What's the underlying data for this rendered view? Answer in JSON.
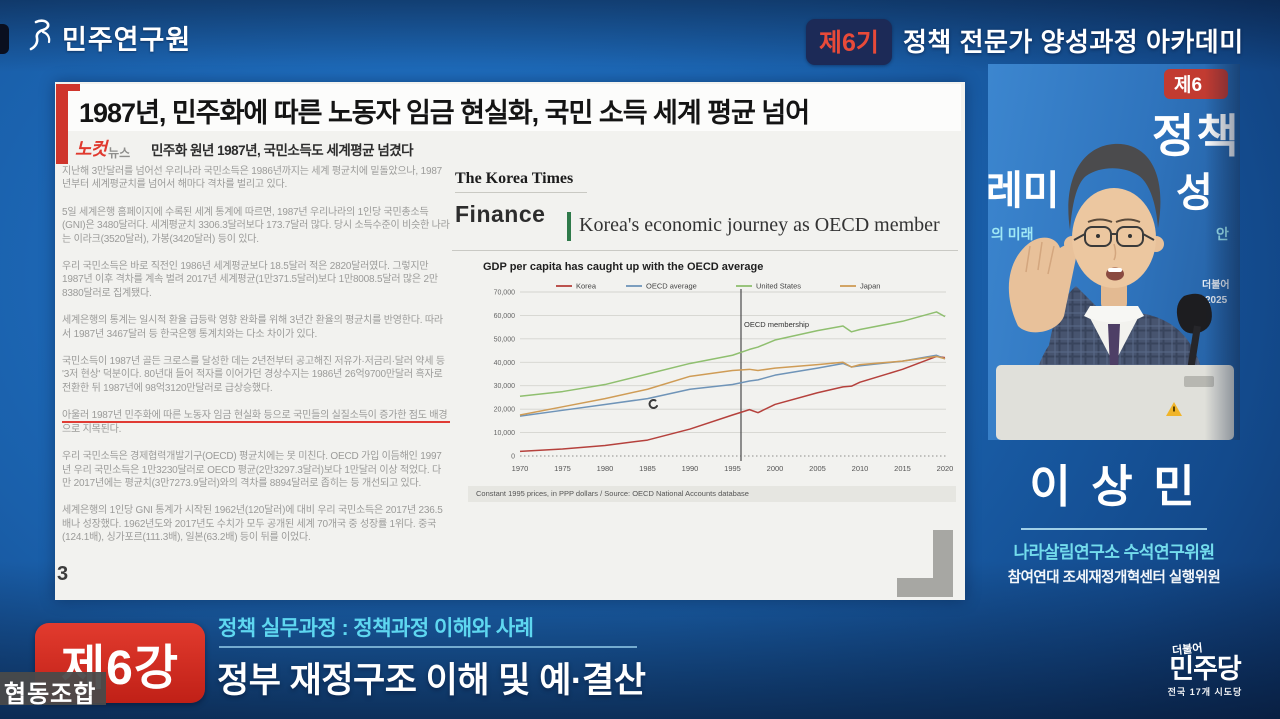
{
  "header": {
    "logo_text": "민주연구원",
    "badge": "제6기",
    "title": "정책 전문가 양성과정 아카데미"
  },
  "slide": {
    "headline": "1987년, 민주화에 따른 노동자 임금 현실화, 국민 소득 세계 평균 넘어",
    "news_logo_primary": "노컷",
    "news_logo_secondary": "뉴스",
    "subhead": "민주화 원년 1987년, 국민소득도 세계평균 넘겼다",
    "page_number": "3",
    "paragraphs": [
      "지난해 3만달러를 넘어선 우리나라 국민소득은 1986년까지는 세계 평균치에 밑돌았으나, 1987년부터 세계평균치를 넘어서 해마다 격차를 벌리고 있다.",
      "5일 세계은행 홈페이지에 수록된 세계 통계에 따르면, 1987년 우리나라의 1인당 국민총소득(GNI)은 3480달러다. 세계평균치 3306.3달러보다 173.7달러 많다. 당시 소득수준이 비슷한 나라는 이라크(3520달러), 가봉(3420달러) 등이 있다.",
      "우리 국민소득은 바로 직전인 1986년 세계평균보다 18.5달러 적은 2820달러였다. 그렇지만 1987년 이후 격차를 계속 벌려 2017년 세계평균(1만371.5달러)보다 1만8008.5달러 많은 2만8380달러로 집계됐다.",
      "세계은행의 통계는 일시적 환율 급등락 영향 완화를 위해 3년간 환율의 평균치를 반영한다. 따라서 1987년 3467달러 등 한국은행 통계치와는 다소 차이가 있다.",
      "국민소득이 1987년 골든 크로스를 달성한 데는 2년전부터 공고해진 저유가·저금리·달러 약세 등 '3저 현상' 덕분이다. 80년대 들어 적자를 이어가던 경상수지는 1986년 26억9700만달러 흑자로 전환한 뒤 1987년에 98억3120만달러로 급상승했다."
    ],
    "highlight": "아울러 1987년 민주화에 따른 노동자 임금 현실화 등으로 국민들의 실질소득이 증가한 점도 배경으로 지목된다.",
    "paragraphs_after": [
      "우리 국민소득은 경제협력개발기구(OECD) 평균치에는 못 미친다. OECD 가입 이듬해인 1997년 우리 국민소득은 1만3230달러로 OECD 평균(2만3297.3달러)보다 1만달러 이상 적었다. 다만 2017년에는 평균치(3만7273.9달러)와의 격차를 8894달러로 좁히는 등 개선되고 있다.",
      "세계은행의 1인당 GNI 통계가 시작된 1962년(120달러)에 대비 우리 국민소득은 2017년 236.5배나 성장했다. 1962년도와 2017년도 수치가 모두 공개된 세계 70개국 중 성장률 1위다. 중국(124.1배), 싱가포르(111.3배), 일본(63.2배) 등이 뒤를 이었다."
    ]
  },
  "koreatimes": {
    "masthead": "The Korea Times",
    "section": "Finance",
    "article_title": "Korea's economic journey as OECD member"
  },
  "chart_data": {
    "type": "line",
    "title": "GDP per capita has caught up with the OECD average",
    "source_note": "Constant 1995 prices, in PPP dollars / Source: OECD National Accounts database",
    "x_axis_range": [
      1970,
      2020
    ],
    "x_ticks": [
      1970,
      1975,
      1980,
      1985,
      1990,
      1995,
      2000,
      2005,
      2010,
      2015,
      2020
    ],
    "ylim": [
      0,
      70000
    ],
    "y_step": 10000,
    "grid": true,
    "legend_position": "top",
    "annotation": {
      "year": 1996,
      "label": "OECD membership"
    },
    "x": [
      1970,
      1975,
      1980,
      1985,
      1990,
      1995,
      1997,
      1998,
      2000,
      2005,
      2008,
      2009,
      2010,
      2015,
      2019,
      2020
    ],
    "series": [
      {
        "name": "Korea",
        "color": "#b5413c",
        "values": [
          2000,
          3000,
          4500,
          6800,
          11500,
          17500,
          19800,
          18500,
          22000,
          27000,
          29500,
          29800,
          31500,
          37000,
          42500,
          42000
        ]
      },
      {
        "name": "OECD average",
        "color": "#6f94b8",
        "values": [
          17000,
          19500,
          22000,
          24500,
          28500,
          30500,
          32000,
          32500,
          34500,
          37500,
          39500,
          38000,
          38500,
          40500,
          43000,
          41500
        ]
      },
      {
        "name": "United States",
        "color": "#8fbf6f",
        "values": [
          25500,
          27500,
          30500,
          35000,
          39500,
          43000,
          45500,
          46500,
          49500,
          53500,
          55500,
          53000,
          54000,
          57500,
          61500,
          59500
        ]
      },
      {
        "name": "Japan",
        "color": "#cf9c56",
        "values": [
          17500,
          21000,
          24500,
          28500,
          34000,
          36500,
          37000,
          36500,
          37500,
          39000,
          40000,
          38000,
          39000,
          40500,
          42500,
          41500
        ]
      }
    ]
  },
  "speaker": {
    "name": "이 상 민",
    "title1": "나라살림연구소 수석연구위원",
    "title2": "참여연대 조세재정개혁센터 실행위원",
    "backdrop": {
      "badge": "제6",
      "word1": "정책",
      "word2": "레미",
      "word3": "성",
      "word4": "의 미래",
      "word5": "안",
      "word6": "더불어",
      "word7": "2025"
    }
  },
  "footer": {
    "lecture_badge": "제6강",
    "course": "정책 실무과정 : 정책과정 이해와 사례",
    "title": "정부 재정구조 이해 및 예·결산",
    "caption_overlay": "협동조합",
    "party": {
      "top": "더불어",
      "main": "민주당",
      "sub": "전국 17개 시도당"
    }
  }
}
